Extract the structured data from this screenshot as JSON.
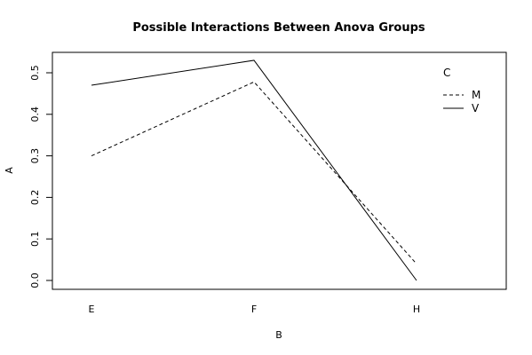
{
  "chart_data": {
    "type": "line",
    "title": "Possible Interactions Between Anova Groups",
    "xlabel": "B",
    "ylabel": "A",
    "categories": [
      "E",
      "F",
      "H"
    ],
    "ylim": [
      -0.02,
      0.55
    ],
    "yticks": [
      "0.0",
      "0.1",
      "0.2",
      "0.3",
      "0.4",
      "0.5"
    ],
    "legend": {
      "title": "C",
      "position": "top-right"
    },
    "series": [
      {
        "name": "M",
        "style": "dashed",
        "values": [
          0.3,
          0.478,
          0.04
        ]
      },
      {
        "name": "V",
        "style": "solid",
        "values": [
          0.47,
          0.53,
          0.0
        ]
      }
    ]
  }
}
